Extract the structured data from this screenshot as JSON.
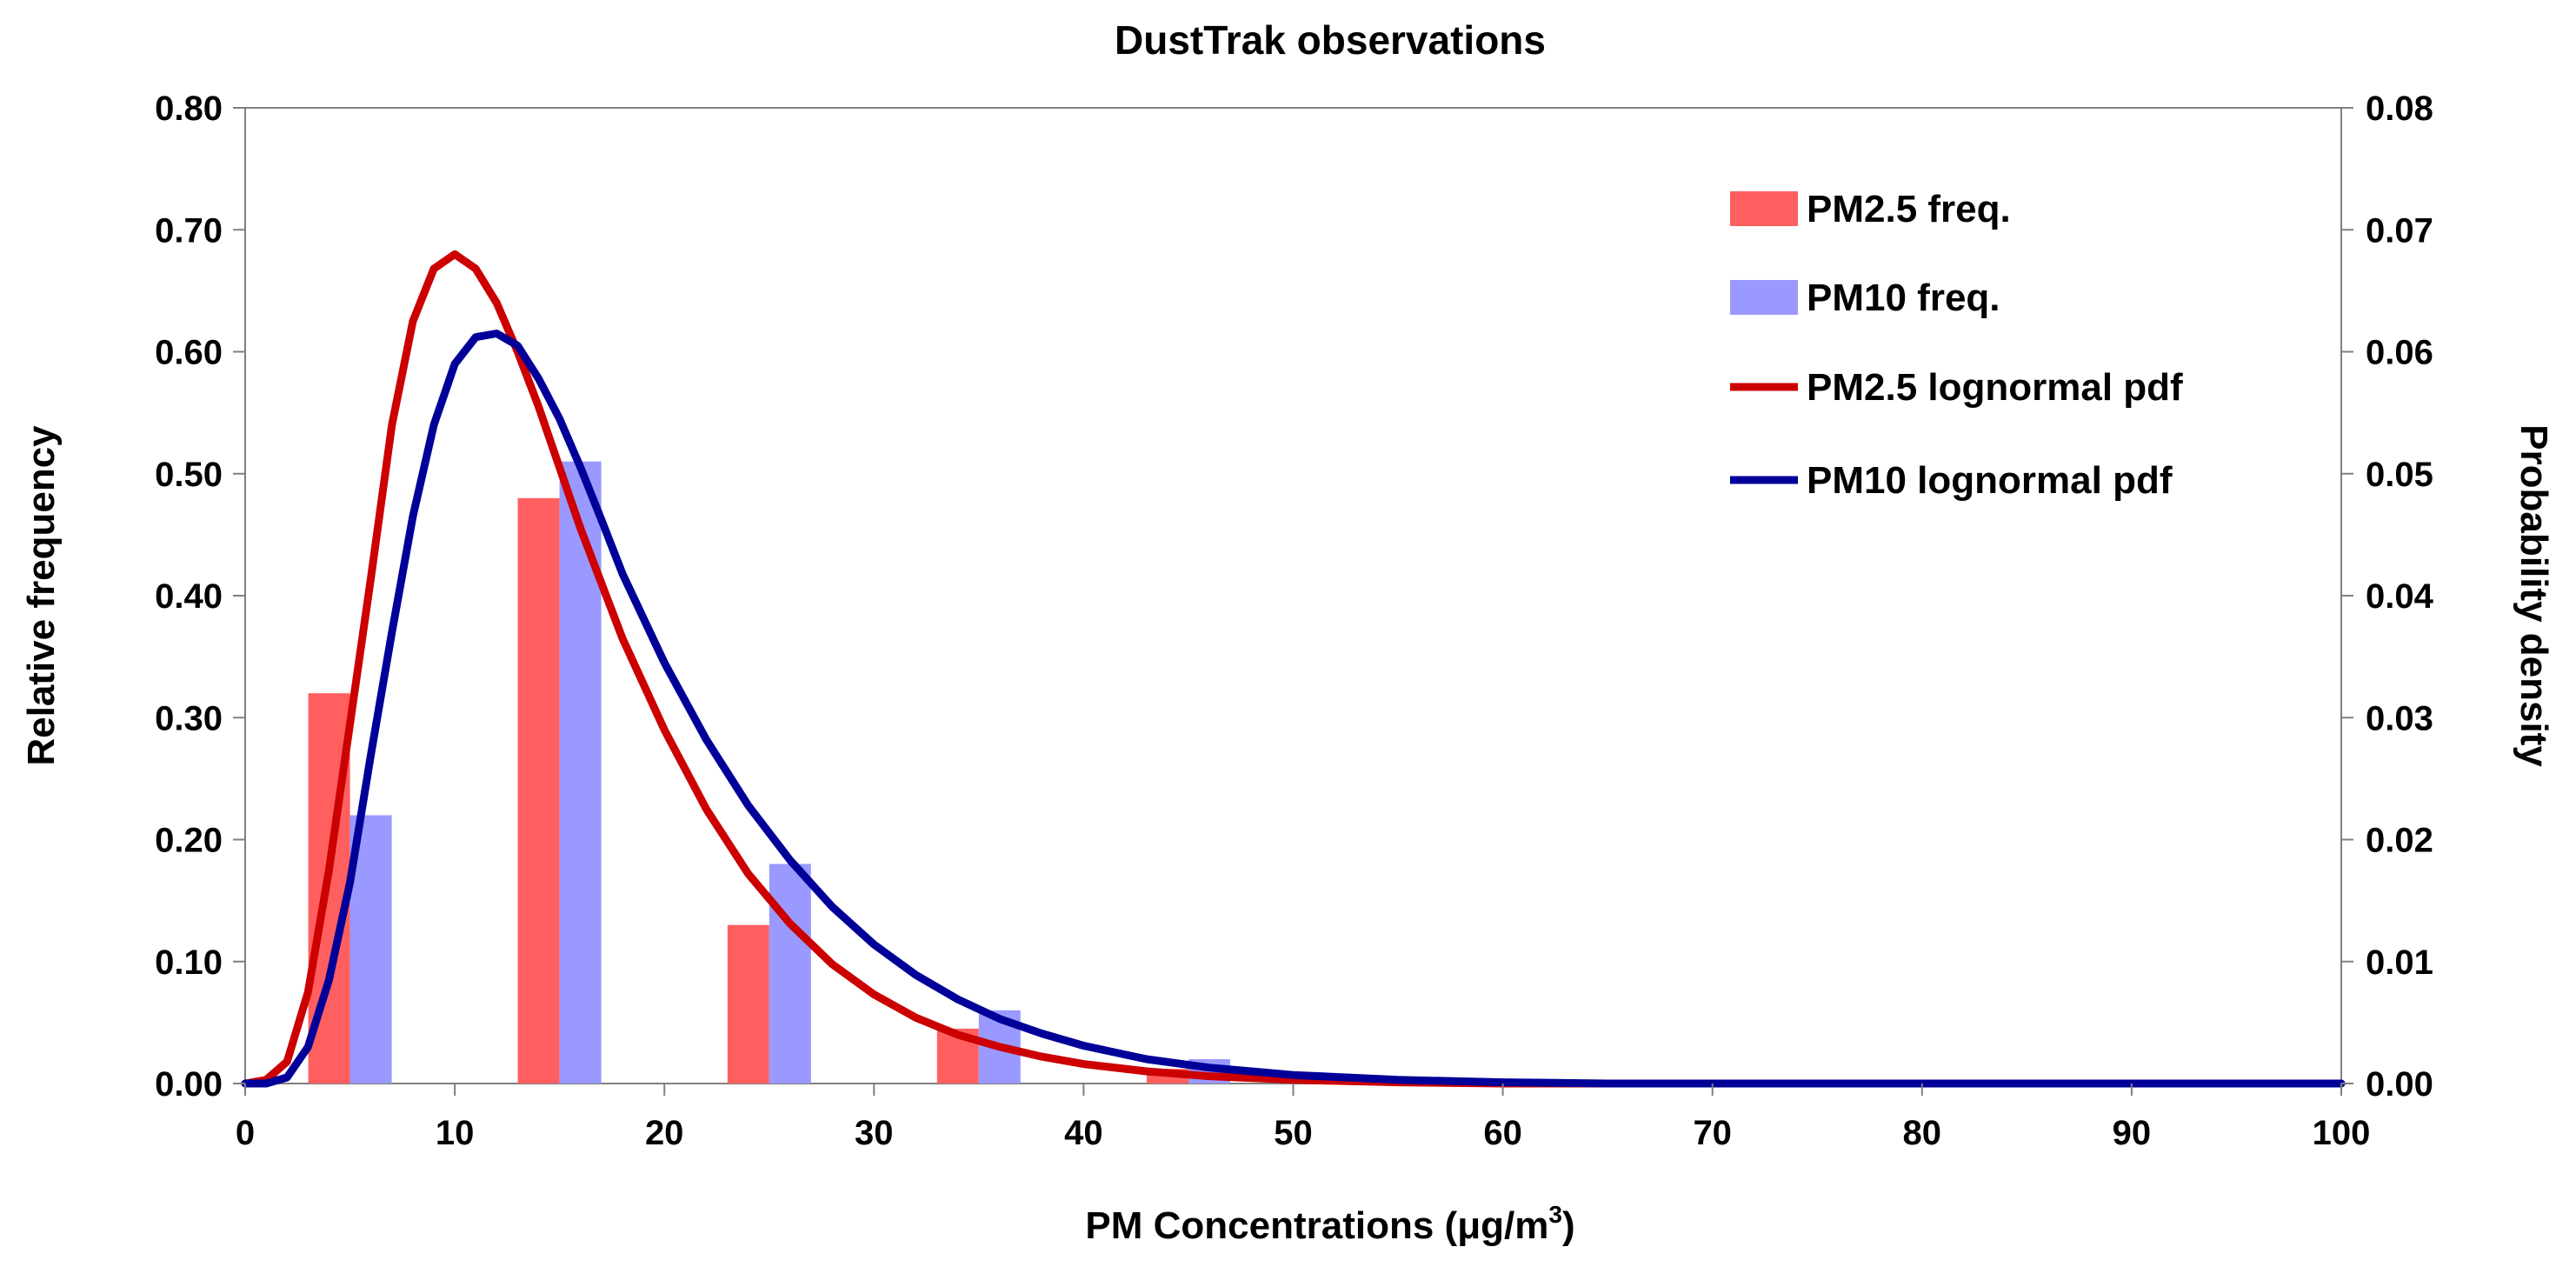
{
  "chart_data": {
    "type": "bar",
    "title": "DustTrak observations",
    "xlabel": "PM Concentrations (μg/m",
    "xlabel_superscript": "3",
    "xlabel_suffix": ")",
    "ylabel": "Relative frequency",
    "y2label": "Probability density",
    "xlim": [
      0,
      100
    ],
    "ylim": [
      0,
      0.8
    ],
    "y2lim": [
      0,
      0.08
    ],
    "x_ticks": [
      "0",
      "10",
      "20",
      "30",
      "40",
      "50",
      "60",
      "70",
      "80",
      "90",
      "100"
    ],
    "y_ticks": [
      "0.00",
      "0.10",
      "0.20",
      "0.30",
      "0.40",
      "0.50",
      "0.60",
      "0.70",
      "0.80"
    ],
    "y2_ticks": [
      "0.00",
      "0.01",
      "0.02",
      "0.03",
      "0.04",
      "0.05",
      "0.06",
      "0.07",
      "0.08"
    ],
    "bar_centers": [
      5,
      15,
      25,
      35,
      45,
      55,
      65,
      75,
      85,
      95
    ],
    "series": [
      {
        "name": "PM2.5 freq.",
        "kind": "bar",
        "axis": "left",
        "color": "#ff5f5f",
        "values": [
          0.32,
          0.48,
          0.13,
          0.045,
          0.012,
          0.003,
          0.0,
          0.0,
          0.0,
          0.0
        ]
      },
      {
        "name": "PM10 freq.",
        "kind": "bar",
        "axis": "left",
        "color": "#9999ff",
        "values": [
          0.22,
          0.51,
          0.18,
          0.06,
          0.02,
          0.005,
          0.002,
          0.0,
          0.0,
          0.0
        ]
      },
      {
        "name": "PM2.5 lognormal pdf",
        "kind": "line",
        "axis": "right",
        "color": "#cc0000",
        "x": [
          0,
          1,
          2,
          3,
          4,
          5,
          6,
          7,
          8,
          9,
          10,
          11,
          12,
          13,
          14,
          15,
          16,
          17,
          18,
          20,
          22,
          24,
          26,
          28,
          30,
          32,
          34,
          36,
          38,
          40,
          43,
          46,
          50,
          55,
          60,
          70,
          80,
          90,
          100
        ],
        "values": [
          0.0,
          0.0003,
          0.0018,
          0.0075,
          0.0175,
          0.0295,
          0.0415,
          0.054,
          0.0625,
          0.0668,
          0.068,
          0.0668,
          0.064,
          0.06,
          0.0555,
          0.0505,
          0.0455,
          0.041,
          0.0365,
          0.029,
          0.0225,
          0.0172,
          0.0131,
          0.0098,
          0.0073,
          0.0054,
          0.004,
          0.003,
          0.0022,
          0.0016,
          0.001,
          0.0006,
          0.0003,
          0.0001,
          0.0,
          0.0,
          0.0,
          0.0,
          0.0
        ]
      },
      {
        "name": "PM10 lognormal pdf",
        "kind": "line",
        "axis": "right",
        "color": "#000099",
        "x": [
          0,
          1,
          2,
          3,
          4,
          5,
          6,
          7,
          8,
          9,
          10,
          11,
          12,
          13,
          14,
          15,
          16,
          17,
          18,
          20,
          22,
          24,
          26,
          28,
          30,
          32,
          34,
          36,
          38,
          40,
          43,
          46,
          50,
          55,
          60,
          65,
          70,
          72,
          80,
          90,
          100
        ],
        "values": [
          0.0,
          0.0,
          0.0005,
          0.003,
          0.0085,
          0.0165,
          0.027,
          0.037,
          0.0465,
          0.054,
          0.059,
          0.0612,
          0.0615,
          0.0605,
          0.0578,
          0.0545,
          0.0505,
          0.0462,
          0.0418,
          0.0345,
          0.0282,
          0.0228,
          0.0183,
          0.0145,
          0.0114,
          0.0089,
          0.0069,
          0.0053,
          0.0041,
          0.0031,
          0.002,
          0.0013,
          0.0007,
          0.0003,
          0.0001,
          0.0,
          0.0,
          0.0,
          0.0,
          0.0,
          0.0
        ]
      }
    ],
    "legend_position": "top-right"
  }
}
